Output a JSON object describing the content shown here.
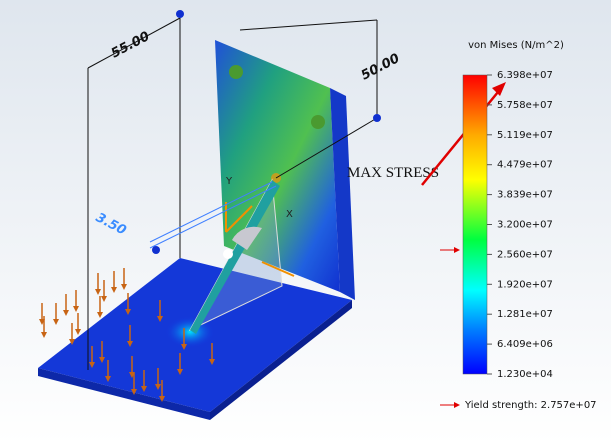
{
  "legend": {
    "title": "von Mises (N/m^2)",
    "labels": [
      "6.398e+07",
      "5.758e+07",
      "5.119e+07",
      "4.479e+07",
      "3.839e+07",
      "3.200e+07",
      "2.560e+07",
      "1.920e+07",
      "1.281e+07",
      "6.409e+06",
      "1.230e+04"
    ],
    "yield_strength": "Yield strength: 2.757e+07"
  },
  "annotation": "MAX STRESS",
  "dimensions": [
    "55.00",
    "50.00",
    "3.50"
  ]
}
